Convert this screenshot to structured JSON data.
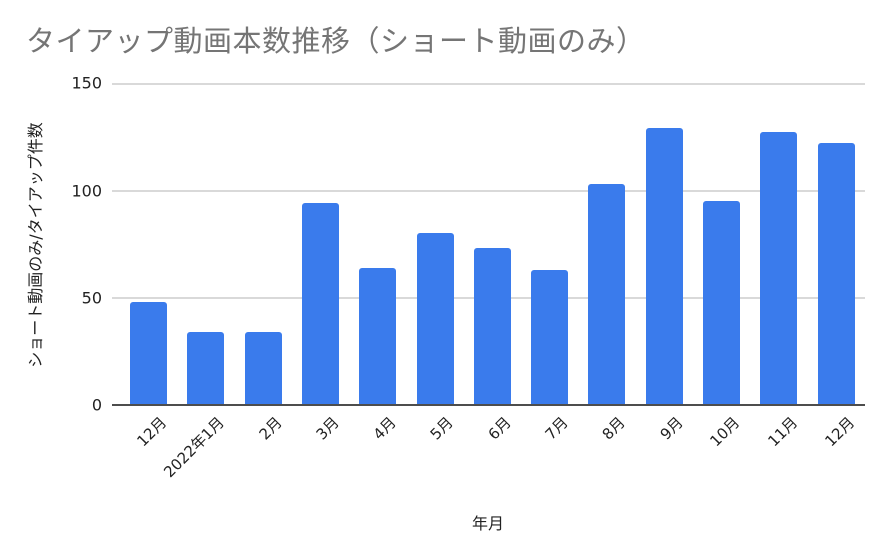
{
  "chart_data": {
    "type": "bar",
    "title": "タイアップ動画本数推移（ショート動画のみ）",
    "xlabel": "年月",
    "ylabel": "ショート動画のみ/タイアップ件数",
    "categories": [
      "12月",
      "2022年1月",
      "2月",
      "3月",
      "4月",
      "5月",
      "6月",
      "7月",
      "8月",
      "9月",
      "10月",
      "11月",
      "12月"
    ],
    "values": [
      48,
      34,
      34,
      94,
      64,
      80,
      73,
      63,
      103,
      129,
      95,
      127,
      122
    ],
    "ylim": [
      0,
      150
    ],
    "yticks": [
      "0",
      "50",
      "100",
      "150"
    ],
    "grid": true,
    "legend": "none",
    "bar_color": "#3a7bec"
  }
}
